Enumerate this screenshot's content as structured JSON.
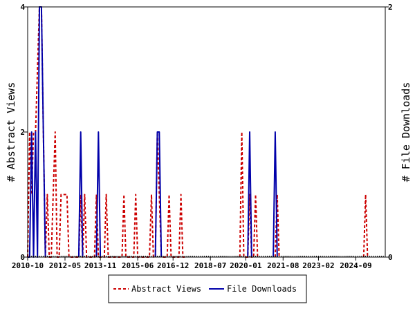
{
  "chart_data": {
    "type": "line",
    "x_ticks": [
      "2010-10",
      "2012-05",
      "2013-11",
      "2015-06",
      "2016-12",
      "2018-07",
      "2020-01",
      "2021-08",
      "2023-02",
      "2024-09"
    ],
    "x_range": [
      "2010-10",
      "2025-12"
    ],
    "y_left": {
      "label": "# Abstract Views",
      "ticks": [
        "0",
        "2",
        "4"
      ],
      "range": [
        0,
        4
      ]
    },
    "y_right": {
      "label": "# File Downloads",
      "ticks": [
        "0",
        "2"
      ],
      "range": [
        0,
        2
      ]
    },
    "grid": false,
    "legend_position": "bottom",
    "series": [
      {
        "name": "Abstract Views",
        "axis": "left",
        "color": "#cc0000",
        "style": "dashed",
        "points": [
          [
            "2010-10",
            0
          ],
          [
            "2010-11",
            2
          ],
          [
            "2010-12",
            1
          ],
          [
            "2011-01",
            2
          ],
          [
            "2011-02",
            2
          ],
          [
            "2011-03",
            3
          ],
          [
            "2011-04",
            4
          ],
          [
            "2011-05",
            4
          ],
          [
            "2011-06",
            2
          ],
          [
            "2011-07",
            0
          ],
          [
            "2011-08",
            1
          ],
          [
            "2011-09",
            0
          ],
          [
            "2011-10",
            0
          ],
          [
            "2011-11",
            1
          ],
          [
            "2011-12",
            2
          ],
          [
            "2012-01",
            0
          ],
          [
            "2012-02",
            0
          ],
          [
            "2012-03",
            1
          ],
          [
            "2012-04",
            1
          ],
          [
            "2012-05",
            1
          ],
          [
            "2012-06",
            1
          ],
          [
            "2012-07",
            0
          ],
          [
            "2012-08",
            0
          ],
          [
            "2012-09",
            0
          ],
          [
            "2012-10",
            0
          ],
          [
            "2012-11",
            0
          ],
          [
            "2012-12",
            0
          ],
          [
            "2013-01",
            1
          ],
          [
            "2013-02",
            0
          ],
          [
            "2013-03",
            1
          ],
          [
            "2013-04",
            0
          ],
          [
            "2013-05",
            0
          ],
          [
            "2013-06",
            0
          ],
          [
            "2013-07",
            0
          ],
          [
            "2013-08",
            0
          ],
          [
            "2013-09",
            1
          ],
          [
            "2013-10",
            0
          ],
          [
            "2013-11",
            0
          ],
          [
            "2013-12",
            0
          ],
          [
            "2014-01",
            0
          ],
          [
            "2014-02",
            1
          ],
          [
            "2014-03",
            0
          ],
          [
            "2014-04",
            0
          ],
          [
            "2014-05",
            0
          ],
          [
            "2014-06",
            0
          ],
          [
            "2014-07",
            0
          ],
          [
            "2014-08",
            0
          ],
          [
            "2014-09",
            0
          ],
          [
            "2014-10",
            0
          ],
          [
            "2014-11",
            1
          ],
          [
            "2014-12",
            0
          ],
          [
            "2015-01",
            0
          ],
          [
            "2015-02",
            0
          ],
          [
            "2015-03",
            0
          ],
          [
            "2015-04",
            0
          ],
          [
            "2015-05",
            1
          ],
          [
            "2015-06",
            0
          ],
          [
            "2015-07",
            0
          ],
          [
            "2015-08",
            0
          ],
          [
            "2015-09",
            0
          ],
          [
            "2015-10",
            0
          ],
          [
            "2015-11",
            0
          ],
          [
            "2015-12",
            0
          ],
          [
            "2016-01",
            1
          ],
          [
            "2016-02",
            0
          ],
          [
            "2016-03",
            0
          ],
          [
            "2016-04",
            2
          ],
          [
            "2016-05",
            1
          ],
          [
            "2016-06",
            0
          ],
          [
            "2016-07",
            0
          ],
          [
            "2016-08",
            0
          ],
          [
            "2016-09",
            0
          ],
          [
            "2016-10",
            1
          ],
          [
            "2016-11",
            0
          ],
          [
            "2016-12",
            0
          ],
          [
            "2017-01",
            0
          ],
          [
            "2017-02",
            0
          ],
          [
            "2017-03",
            0
          ],
          [
            "2017-04",
            1
          ],
          [
            "2017-05",
            0
          ],
          [
            "2017-06",
            0
          ],
          [
            "2019-10",
            0
          ],
          [
            "2019-11",
            2
          ],
          [
            "2019-12",
            0
          ],
          [
            "2020-01",
            0
          ],
          [
            "2020-02",
            0
          ],
          [
            "2020-03",
            1
          ],
          [
            "2020-04",
            0
          ],
          [
            "2020-05",
            0
          ],
          [
            "2020-06",
            1
          ],
          [
            "2020-07",
            0
          ],
          [
            "2021-04",
            0
          ],
          [
            "2021-05",
            1
          ],
          [
            "2021-06",
            0
          ],
          [
            "2025-01",
            0
          ],
          [
            "2025-02",
            1
          ],
          [
            "2025-03",
            0
          ]
        ]
      },
      {
        "name": "File Downloads",
        "axis": "right",
        "color": "#0000aa",
        "style": "solid",
        "points": [
          [
            "2010-10",
            0
          ],
          [
            "2010-11",
            0
          ],
          [
            "2010-12",
            1
          ],
          [
            "2011-01",
            0
          ],
          [
            "2011-02",
            1
          ],
          [
            "2011-03",
            0
          ],
          [
            "2011-04",
            2
          ],
          [
            "2011-05",
            2
          ],
          [
            "2011-06",
            1
          ],
          [
            "2011-07",
            0
          ],
          [
            "2012-12",
            0
          ],
          [
            "2013-01",
            1
          ],
          [
            "2013-02",
            0
          ],
          [
            "2013-09",
            0
          ],
          [
            "2013-10",
            1
          ],
          [
            "2013-11",
            0
          ],
          [
            "2016-03",
            0
          ],
          [
            "2016-04",
            1
          ],
          [
            "2016-05",
            1
          ],
          [
            "2016-06",
            0
          ],
          [
            "2020-02",
            0
          ],
          [
            "2020-03",
            1
          ],
          [
            "2020-04",
            0
          ],
          [
            "2021-03",
            0
          ],
          [
            "2021-04",
            1
          ],
          [
            "2021-05",
            0
          ]
        ]
      }
    ]
  }
}
